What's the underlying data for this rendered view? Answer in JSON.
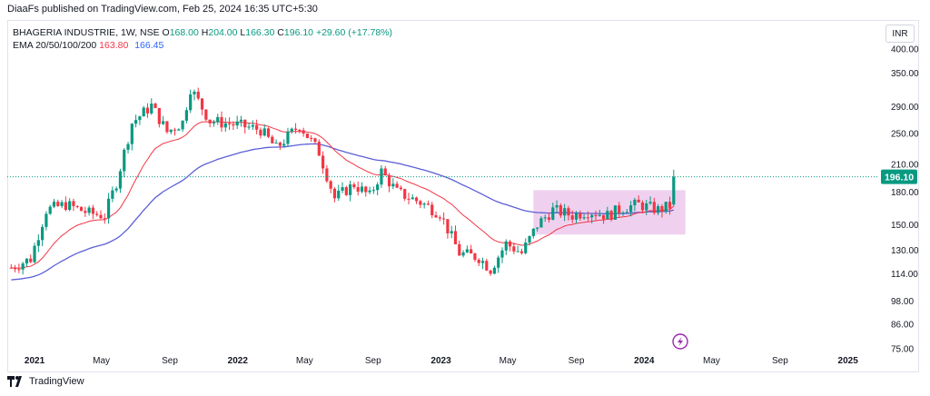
{
  "publish_line": "DiaaFs published on TradingView.com, Feb 25, 2024 16:35 UTC+5:30",
  "legend": {
    "symbol": "BHAGERIA INDUSTRIE, 1W, NSE",
    "o_label": "O",
    "o": "168.00",
    "h_label": "H",
    "h": "204.00",
    "l_label": "L",
    "l": "166.30",
    "c_label": "C",
    "c": "196.10",
    "change": "+29.60 (+17.78%)",
    "ema_label": "EMA 20/50/100/200",
    "ema_a": "163.80",
    "ema_b": "166.45"
  },
  "currency": "INR",
  "footer_brand": "TradingView",
  "icon": "lightning-icon",
  "colors": {
    "up": "#089981",
    "down": "#f23645",
    "ema20": "#f23645",
    "ema200": "#5b5fd6",
    "box_fill": "#e6b8e6",
    "price_tag": "#089981"
  },
  "chart_data": {
    "type": "candlestick",
    "timeframe": "1W",
    "y_scale": "log",
    "ylim": [
      75,
      430
    ],
    "y_ticks": [
      "400.00",
      "350.00",
      "290.00",
      "250.00",
      "210.00",
      "180.00",
      "150.00",
      "130.00",
      "114.00",
      "98.00",
      "86.00",
      "75.00"
    ],
    "x_ticks": [
      "2021",
      "May",
      "Sep",
      "2022",
      "May",
      "Sep",
      "2023",
      "May",
      "Sep",
      "2024",
      "May",
      "Sep",
      "2025"
    ],
    "last_price": "196.10",
    "anchors": [
      {
        "date": "2020-11-20",
        "close": 118
      },
      {
        "date": "2020-12-25",
        "close": 124
      },
      {
        "date": "2021-01-22",
        "close": 163
      },
      {
        "date": "2021-02-26",
        "close": 168
      },
      {
        "date": "2021-04-09",
        "close": 160
      },
      {
        "date": "2021-05-07",
        "close": 158
      },
      {
        "date": "2021-05-28",
        "close": 190
      },
      {
        "date": "2021-06-25",
        "close": 265
      },
      {
        "date": "2021-07-30",
        "close": 292
      },
      {
        "date": "2021-08-27",
        "close": 252
      },
      {
        "date": "2021-09-24",
        "close": 266
      },
      {
        "date": "2021-10-08",
        "close": 322
      },
      {
        "date": "2021-11-12",
        "close": 268
      },
      {
        "date": "2021-12-31",
        "close": 262
      },
      {
        "date": "2022-02-11",
        "close": 255
      },
      {
        "date": "2022-03-11",
        "close": 230
      },
      {
        "date": "2022-04-22",
        "close": 262
      },
      {
        "date": "2022-05-27",
        "close": 225
      },
      {
        "date": "2022-06-24",
        "close": 174
      },
      {
        "date": "2022-07-29",
        "close": 188
      },
      {
        "date": "2022-08-26",
        "close": 176
      },
      {
        "date": "2022-09-16",
        "close": 202
      },
      {
        "date": "2022-10-14",
        "close": 180
      },
      {
        "date": "2022-11-25",
        "close": 170
      },
      {
        "date": "2022-12-30",
        "close": 160
      },
      {
        "date": "2023-02-03",
        "close": 128
      },
      {
        "date": "2023-03-10",
        "close": 125
      },
      {
        "date": "2023-03-31",
        "close": 117
      },
      {
        "date": "2023-04-28",
        "close": 135
      },
      {
        "date": "2023-05-26",
        "close": 128
      },
      {
        "date": "2023-06-23",
        "close": 150
      },
      {
        "date": "2023-07-21",
        "close": 163
      },
      {
        "date": "2023-08-25",
        "close": 158
      },
      {
        "date": "2023-09-22",
        "close": 162
      },
      {
        "date": "2023-10-27",
        "close": 158
      },
      {
        "date": "2023-11-24",
        "close": 165
      },
      {
        "date": "2023-12-22",
        "close": 168
      },
      {
        "date": "2024-01-26",
        "close": 163
      },
      {
        "date": "2024-02-16",
        "close": 166.5
      },
      {
        "date": "2024-02-23",
        "close": 196.1
      }
    ],
    "last_candle": {
      "date": "2024-02-23",
      "open": 168.0,
      "high": 204.0,
      "low": 166.3,
      "close": 196.1
    },
    "ema20_last": 163.8,
    "ema200_last": 166.45,
    "box": {
      "x0": "2023-06-16",
      "x1": "2024-03-15",
      "y0": 142,
      "y1": 182
    }
  }
}
